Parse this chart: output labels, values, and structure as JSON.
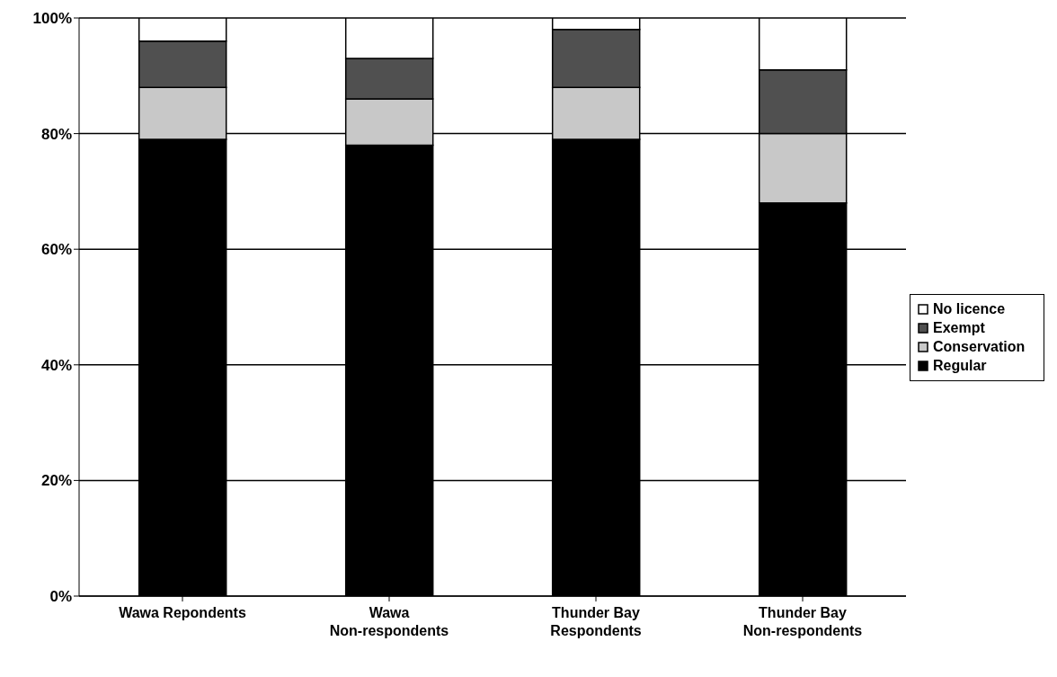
{
  "chart_data": {
    "type": "bar",
    "stacked": true,
    "categories": [
      "Wawa Repondents",
      "Wawa Non-respondents",
      "Thunder Bay Respondents",
      "Thunder Bay Non-respondents"
    ],
    "series": [
      {
        "name": "Regular",
        "color": "#000000",
        "values": [
          79,
          78,
          79,
          68
        ]
      },
      {
        "name": "Conservation",
        "color": "#c8c8c8",
        "values": [
          9,
          8,
          9,
          12
        ]
      },
      {
        "name": "Exempt",
        "color": "#505050",
        "values": [
          8,
          7,
          10,
          11
        ]
      },
      {
        "name": "No licence",
        "color": "#ffffff",
        "values": [
          4,
          7,
          2,
          9
        ]
      }
    ],
    "ylim": [
      0,
      100
    ],
    "yticks": [
      {
        "value": 0,
        "label": "0%"
      },
      {
        "value": 20,
        "label": "20%"
      },
      {
        "value": 40,
        "label": "40%"
      },
      {
        "value": 60,
        "label": "60%"
      },
      {
        "value": 80,
        "label": "80%"
      },
      {
        "value": 100,
        "label": "100%"
      }
    ],
    "grid": "y",
    "legend": "right"
  }
}
